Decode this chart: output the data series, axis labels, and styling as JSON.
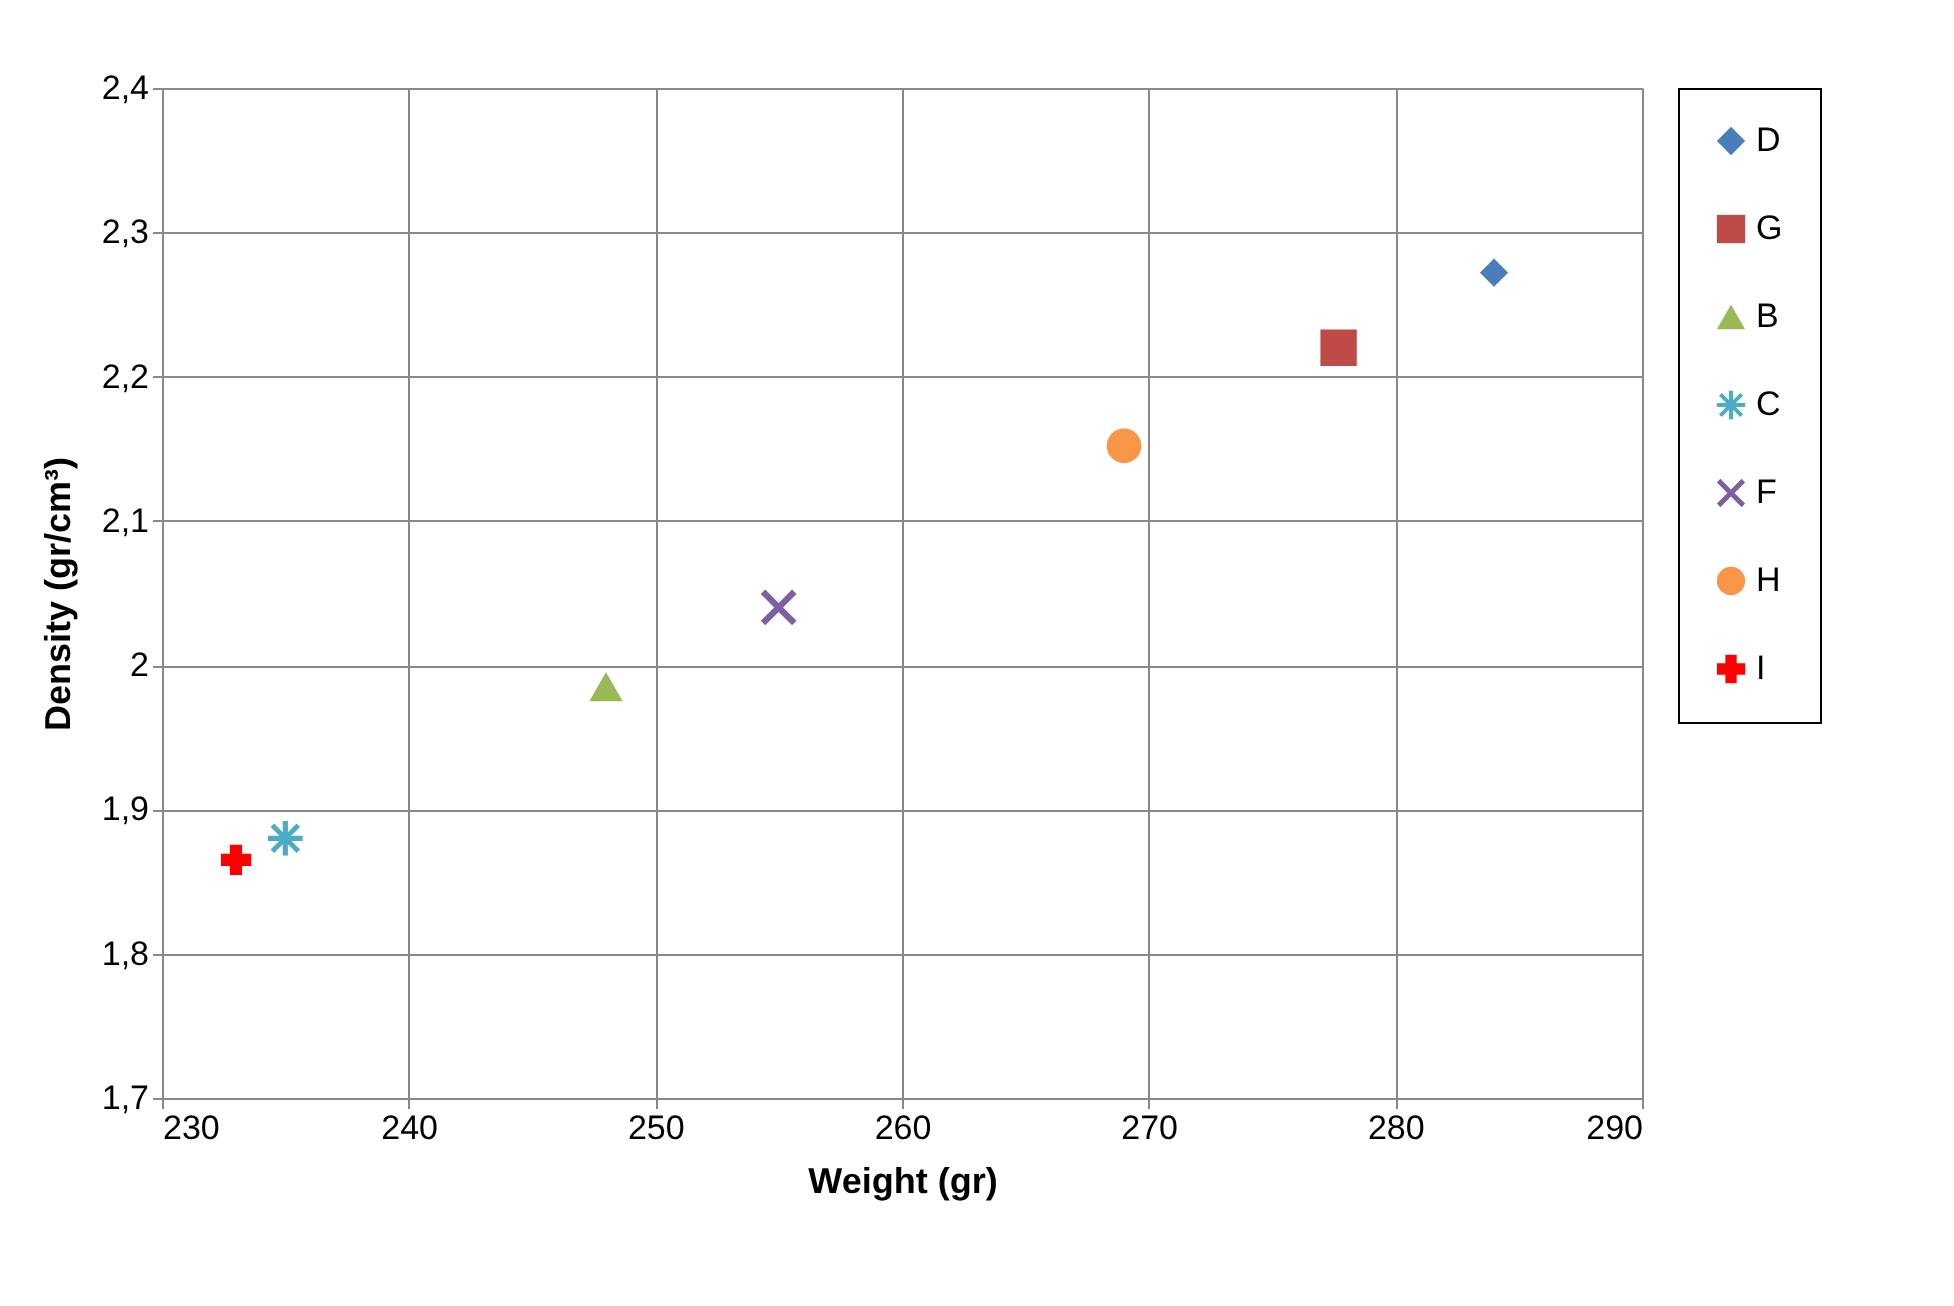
{
  "chart_data": {
    "type": "scatter",
    "xlabel": "Weight (gr)",
    "ylabel": "Density (gr/cm³)",
    "xlim": [
      230,
      290
    ],
    "xticks": [
      230,
      240,
      250,
      260,
      270,
      280,
      290
    ],
    "ylim": [
      1.7,
      2.4
    ],
    "yticks": [
      {
        "value": 1.7,
        "label": "1,7"
      },
      {
        "value": 1.8,
        "label": "1,8"
      },
      {
        "value": 1.9,
        "label": "1,9"
      },
      {
        "value": 2,
        "label": "2"
      },
      {
        "value": 2.1,
        "label": "2,1"
      },
      {
        "value": 2.2,
        "label": "2,2"
      },
      {
        "value": 2.3,
        "label": "2,3"
      },
      {
        "value": 2.4,
        "label": "2,4"
      }
    ],
    "grid": true,
    "legend": "right",
    "series": [
      {
        "name": "D",
        "color": "#4a7ebb",
        "marker": "diamond",
        "x": [
          284
        ],
        "values": [
          2.272
        ]
      },
      {
        "name": "G",
        "color": "#be4b48",
        "marker": "square",
        "x": [
          277.7
        ],
        "values": [
          2.22
        ]
      },
      {
        "name": "B",
        "color": "#98b954",
        "marker": "triangle",
        "x": [
          248
        ],
        "values": [
          1.985
        ]
      },
      {
        "name": "C",
        "color": "#4bacc6",
        "marker": "star",
        "x": [
          235
        ],
        "values": [
          1.88
        ]
      },
      {
        "name": "F",
        "color": "#7d60a0",
        "marker": "x",
        "x": [
          255
        ],
        "values": [
          2.04
        ]
      },
      {
        "name": "H",
        "color": "#f79646",
        "marker": "circle",
        "x": [
          269
        ],
        "values": [
          2.152
        ]
      },
      {
        "name": "I",
        "color": "#ff0000",
        "marker": "cross",
        "x": [
          233
        ],
        "values": [
          1.865
        ]
      }
    ]
  }
}
